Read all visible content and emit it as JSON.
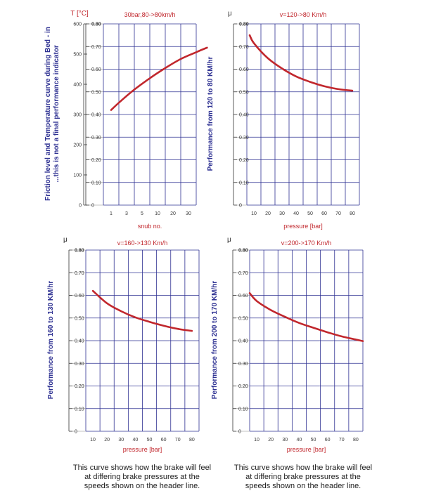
{
  "colors": {
    "grid": "#2e3192",
    "curve": "#c1272d",
    "temp_axis": "#c1272d",
    "mu_axis": "#2e3192",
    "ylabel": "#2e3192",
    "xlabel": "#c1272d",
    "header": "#c1272d"
  },
  "chart_data": [
    {
      "id": "c1",
      "type": "line",
      "title": "30bar,80->80km/h",
      "xlabel": "snub no.",
      "ylabel_lines": [
        "Friction level and Temperature curve during Bed - in",
        "...this is not a final performance indicator"
      ],
      "y2_symbol": "T [°C]",
      "y2_ticks": [
        "600",
        "500",
        "400",
        "300",
        "200",
        "100",
        "0"
      ],
      "y_symbol": "",
      "y_ticks": [
        "0.80",
        "0.70",
        "0.60",
        "0.50",
        "0.40",
        "0.30",
        "0.20",
        "0.10",
        "0"
      ],
      "x_ticks": [
        "1",
        "3",
        "5",
        "10",
        "20",
        "30"
      ],
      "x_scale": "categorical",
      "ylim": [
        0,
        0.8
      ],
      "series": [
        {
          "points": [
            [
              0,
              0.42
            ],
            [
              0.55,
              0.455
            ],
            [
              1.5,
              0.51
            ],
            [
              2.5,
              0.56
            ],
            [
              3.5,
              0.605
            ],
            [
              4.5,
              0.645
            ],
            [
              5.5,
              0.675
            ],
            [
              6.2,
              0.695
            ]
          ]
        }
      ]
    },
    {
      "id": "c2",
      "type": "line",
      "title": "v=120->80 Km/h",
      "xlabel": "pressure [bar]",
      "ylabel_lines": [
        "Performance from 120 to 80 KM/hr"
      ],
      "y_symbol": "μ",
      "y_ticks": [
        "0.80",
        "0.70",
        "0.60",
        "0.50",
        "0.40",
        "0.30",
        "0.20",
        "0.10",
        "0"
      ],
      "x_ticks": [
        "10",
        "20",
        "30",
        "40",
        "50",
        "60",
        "70",
        "80"
      ],
      "x_scale": "linear",
      "xlim": [
        5,
        85
      ],
      "ylim": [
        0,
        0.8
      ],
      "series": [
        {
          "points": [
            [
              7,
              0.75
            ],
            [
              10,
              0.715
            ],
            [
              20,
              0.648
            ],
            [
              30,
              0.603
            ],
            [
              40,
              0.568
            ],
            [
              50,
              0.544
            ],
            [
              60,
              0.525
            ],
            [
              70,
              0.512
            ],
            [
              80,
              0.505
            ]
          ]
        }
      ]
    },
    {
      "id": "c3",
      "type": "line",
      "title": "v=160->130 Km/h",
      "xlabel": "pressure [bar]",
      "ylabel_lines": [
        "Performance from 160 to 130 KM/hr"
      ],
      "y_symbol": "μ",
      "y_ticks": [
        "0.80",
        "0.70",
        "0.60",
        "0.50",
        "0.40",
        "0.30",
        "0.20",
        "0.10",
        "0"
      ],
      "x_ticks": [
        "10",
        "20",
        "30",
        "40",
        "50",
        "60",
        "70",
        "80"
      ],
      "x_scale": "linear",
      "xlim": [
        5,
        85
      ],
      "ylim": [
        0,
        0.8
      ],
      "series": [
        {
          "points": [
            [
              10,
              0.62
            ],
            [
              20,
              0.565
            ],
            [
              30,
              0.53
            ],
            [
              40,
              0.503
            ],
            [
              50,
              0.483
            ],
            [
              60,
              0.466
            ],
            [
              70,
              0.452
            ],
            [
              80,
              0.443
            ]
          ]
        }
      ]
    },
    {
      "id": "c4",
      "type": "line",
      "title": "v=200->170 Km/h",
      "xlabel": "pressure [bar]",
      "ylabel_lines": [
        "Performance from 200 to 170 KM/hr"
      ],
      "y_symbol": "μ",
      "y_ticks": [
        "0.80",
        "0.70",
        "0.60",
        "0.50",
        "0.40",
        "0.30",
        "0.20",
        "0.10",
        "0"
      ],
      "x_ticks": [
        "10",
        "20",
        "30",
        "40",
        "50",
        "60",
        "70",
        "80"
      ],
      "x_scale": "linear",
      "xlim": [
        5,
        85
      ],
      "ylim": [
        0,
        0.8
      ],
      "series": [
        {
          "points": [
            [
              5,
              0.61
            ],
            [
              10,
              0.575
            ],
            [
              20,
              0.535
            ],
            [
              30,
              0.505
            ],
            [
              40,
              0.478
            ],
            [
              50,
              0.457
            ],
            [
              60,
              0.437
            ],
            [
              70,
              0.419
            ],
            [
              80,
              0.405
            ],
            [
              85,
              0.398
            ]
          ]
        }
      ]
    }
  ],
  "captions": [
    {
      "lines": [
        "This curve shows how the brake will feel",
        "at differing brake pressures at the",
        "speeds shown on the header line."
      ]
    },
    {
      "lines": [
        "This curve shows how the brake will feel",
        "at differing brake pressures at the",
        "speeds shown on the header line."
      ]
    }
  ]
}
